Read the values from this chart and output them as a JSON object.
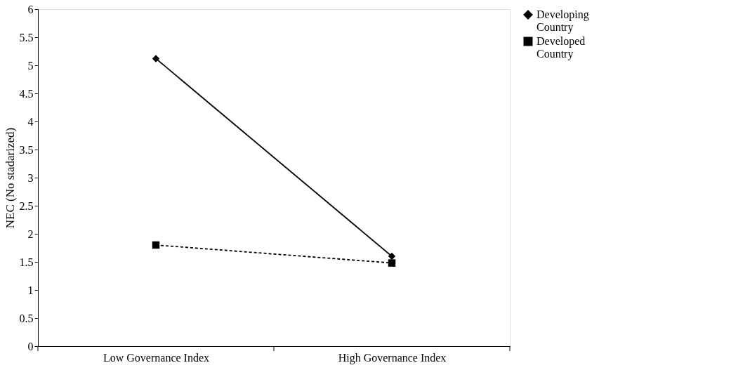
{
  "chart_data": {
    "type": "line",
    "ylabel": "NEC (No stadarized)",
    "categories": [
      "Low Governance Index",
      "High Governance Index"
    ],
    "series": [
      {
        "name": "Developing Country",
        "color": "#000000",
        "values": [
          5.12,
          1.6
        ],
        "marker": "diamond",
        "line_style": "solid"
      },
      {
        "name": "Developed Country",
        "color": "#000000",
        "values": [
          1.8,
          1.48
        ],
        "marker": "square",
        "line_style": "dashed"
      }
    ],
    "ylim": [
      0,
      6
    ],
    "yticks": [
      0,
      0.5,
      1,
      1.5,
      2,
      2.5,
      3,
      3.5,
      4,
      4.5,
      5,
      5.5,
      6
    ],
    "grid": false,
    "legend": "right"
  }
}
